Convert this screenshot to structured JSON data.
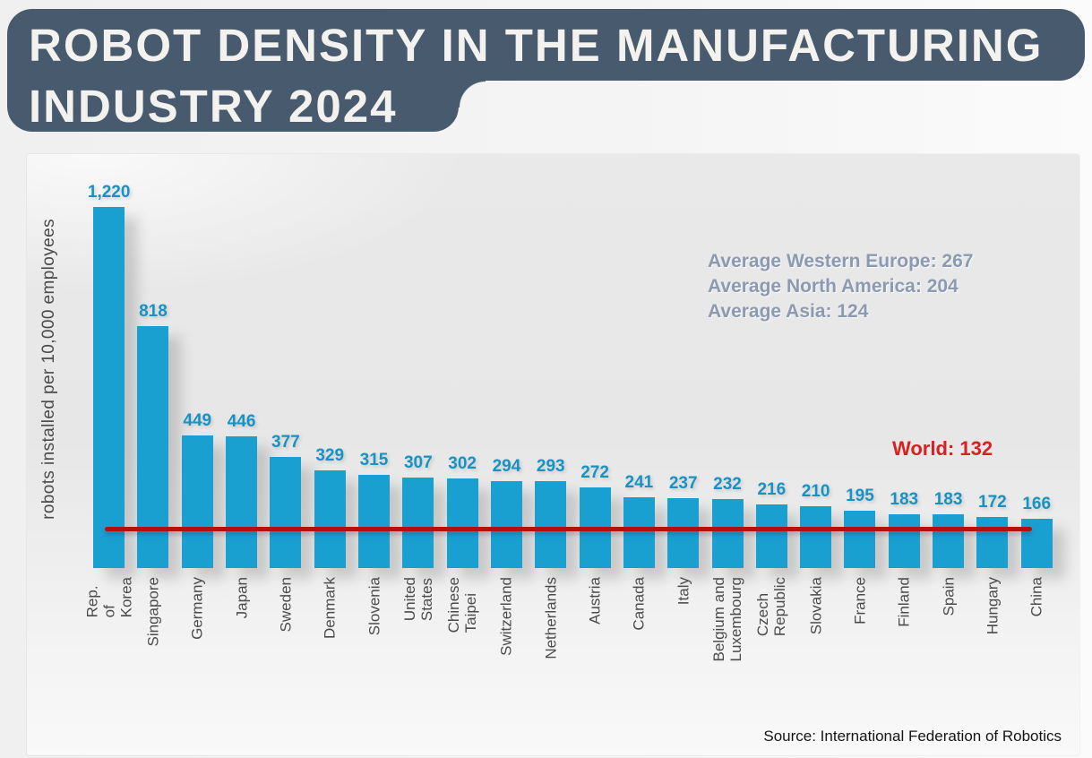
{
  "header": {
    "title_line1": "ROBOT DENSITY IN THE MANUFACTURING",
    "title_line2": "INDUSTRY 2024"
  },
  "chart_data": {
    "type": "bar",
    "title": "Robot density in the manufacturing industry 2024",
    "xlabel": "",
    "ylabel": "robots installed per 10,000 employees",
    "ylim": [
      0,
      1400
    ],
    "grid": false,
    "legend": false,
    "categories": [
      "Rep. of Korea",
      "Singapore",
      "Germany",
      "Japan",
      "Sweden",
      "Denmark",
      "Slovenia",
      "United States",
      "Chinese Taipei",
      "Switzerland",
      "Netherlands",
      "Austria",
      "Canada",
      "Italy",
      "Belgium and Luxembourg",
      "Czech Republic",
      "Slovakia",
      "France",
      "Finland",
      "Spain",
      "Hungary",
      "China"
    ],
    "values": [
      1220,
      818,
      449,
      446,
      377,
      329,
      315,
      307,
      302,
      294,
      293,
      272,
      241,
      237,
      232,
      216,
      210,
      195,
      183,
      183,
      172,
      166
    ],
    "value_labels": [
      "1,220",
      "818",
      "449",
      "446",
      "377",
      "329",
      "315",
      "307",
      "302",
      "294",
      "293",
      "272",
      "241",
      "237",
      "232",
      "216",
      "210",
      "195",
      "183",
      "183",
      "172",
      "166"
    ],
    "reference_line": {
      "label": "World: 132",
      "value": 132
    },
    "averages": [
      {
        "region": "Western Europe",
        "value": 267,
        "text": "Average Western Europe: 267"
      },
      {
        "region": "North America",
        "value": 204,
        "text": "Average North America: 204"
      },
      {
        "region": "Asia",
        "value": 124,
        "text": "Average Asia: 124"
      }
    ],
    "source": "Source: International Federation of Robotics"
  },
  "colors": {
    "banner_bg": "#485a6e",
    "banner_text": "#f3f2ef",
    "bar": "#19a0d0",
    "bar_value_text": "#1792c4",
    "world_line": "#b11111",
    "world_text": "#d92121",
    "averages_text": "#8b9ab0",
    "axis_text": "#4b4b4b"
  }
}
